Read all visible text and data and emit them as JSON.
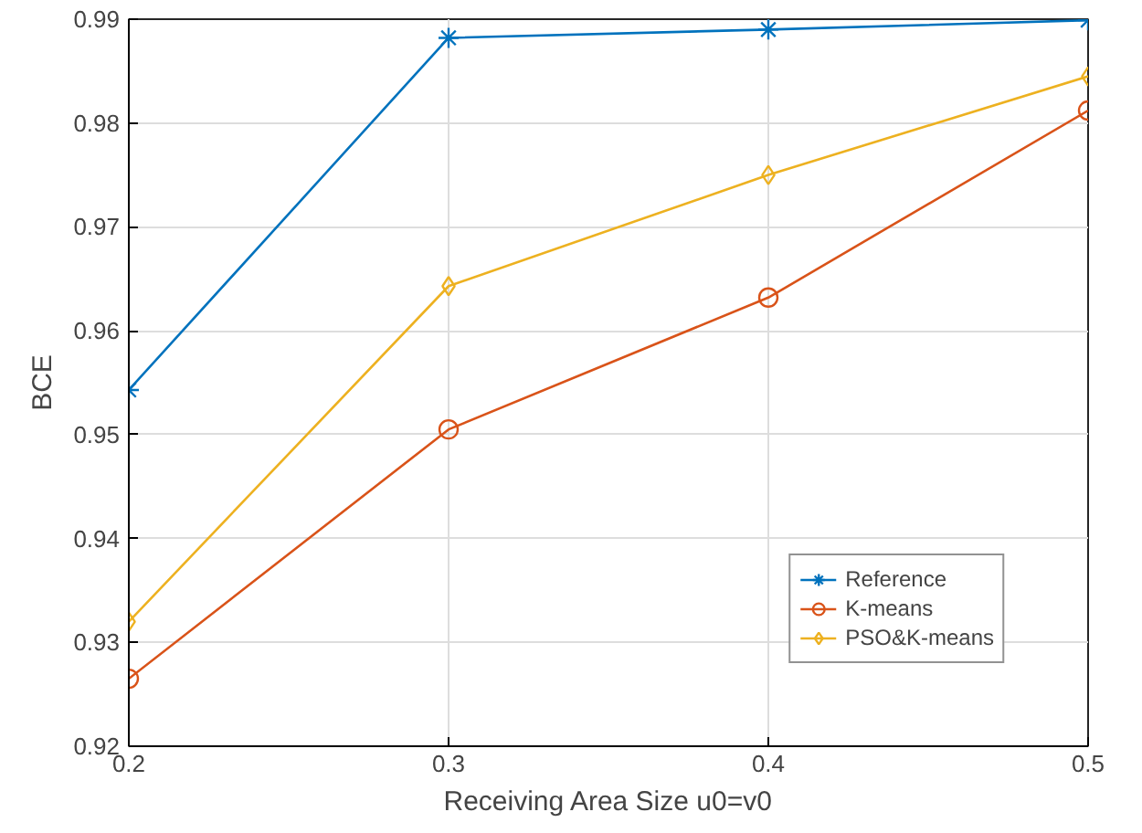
{
  "chart_data": {
    "type": "line",
    "xlabel": "Receiving Area Size u0=v0",
    "ylabel": "BCE",
    "x": [
      0.2,
      0.3,
      0.4,
      0.5
    ],
    "series": [
      {
        "name": "Reference",
        "color": "#0072bd",
        "marker": "cross",
        "values": [
          0.9543,
          0.9882,
          0.989,
          0.9899
        ]
      },
      {
        "name": "K-means",
        "color": "#d95319",
        "marker": "circle",
        "values": [
          0.9265,
          0.9505,
          0.9632,
          0.9812
        ]
      },
      {
        "name": "PSO&K-means",
        "color": "#edb120",
        "marker": "diamond",
        "values": [
          0.932,
          0.9643,
          0.975,
          0.9845
        ]
      }
    ],
    "xlim": [
      0.2,
      0.5
    ],
    "xticks": [
      0.2,
      0.3,
      0.4,
      0.5
    ],
    "ylim": [
      0.92,
      0.99
    ],
    "yticks": [
      0.92,
      0.93,
      0.94,
      0.95,
      0.96,
      0.97,
      0.98,
      0.99
    ],
    "grid": true,
    "legend": "bottom right",
    "line_style": "solid"
  }
}
